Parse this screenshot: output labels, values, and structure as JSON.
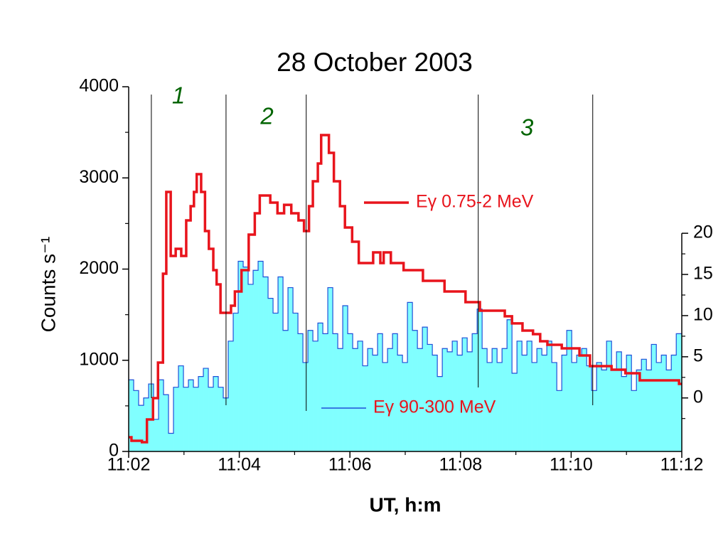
{
  "chart_data": {
    "type": "step",
    "title": "28 October 2003",
    "x_label": "UT, h:m",
    "y_label": "Counts s⁻¹",
    "xlim": [
      662,
      672
    ],
    "xticks": [
      {
        "value": 662,
        "label": "11:02"
      },
      {
        "value": 664,
        "label": "11:04"
      },
      {
        "value": 666,
        "label": "11:06"
      },
      {
        "value": 668,
        "label": "11:08"
      },
      {
        "value": 670,
        "label": "11:10"
      },
      {
        "value": 672,
        "label": "11:12"
      }
    ],
    "xminorticks": [
      663,
      665,
      667,
      669,
      671
    ],
    "ylim": [
      0,
      4000
    ],
    "yticks": [
      0,
      1000,
      2000,
      3000,
      4000
    ],
    "yminorticks": [
      500,
      1500,
      2500,
      3500
    ],
    "y2lim": [
      -6.5,
      37.8
    ],
    "y2ticks": [
      0,
      5,
      10,
      15,
      20
    ],
    "y2minorticks": [
      -2.5,
      2.5,
      7.5,
      12.5,
      17.5
    ],
    "series": [
      {
        "name": "Eγ 0.75-2 MeV",
        "color": "#e8141c",
        "x": [
          662.0,
          662.05,
          662.24,
          662.33,
          662.44,
          662.53,
          662.62,
          662.68,
          662.76,
          662.85,
          662.95,
          663.04,
          663.12,
          663.18,
          663.23,
          663.31,
          663.38,
          663.45,
          663.53,
          663.59,
          663.66,
          663.85,
          663.92,
          664.04,
          664.17,
          664.28,
          664.37,
          664.56,
          664.69,
          664.81,
          664.94,
          665.07,
          665.17,
          665.26,
          665.33,
          665.42,
          665.48,
          665.62,
          665.71,
          665.82,
          665.91,
          666.04,
          666.16,
          666.42,
          666.55,
          666.61,
          666.74,
          666.97,
          667.32,
          667.71,
          668.09,
          668.35,
          668.8,
          668.93,
          669.12,
          669.31,
          669.44,
          669.57,
          669.83,
          670.15,
          670.34,
          670.73,
          670.98,
          671.24,
          671.95
        ],
        "values": [
          156,
          117,
          101,
          351,
          585,
          975,
          1949,
          2846,
          2144,
          2222,
          2144,
          2534,
          2690,
          2846,
          3041,
          2846,
          2417,
          2222,
          1988,
          1832,
          1520,
          1598,
          1754,
          1988,
          2378,
          2612,
          2807,
          2729,
          2612,
          2705,
          2612,
          2534,
          2417,
          2690,
          2963,
          3158,
          3470,
          3275,
          2963,
          2690,
          2456,
          2300,
          2066,
          2183,
          2066,
          2183,
          2066,
          1988,
          1871,
          1754,
          1637,
          1544,
          1482,
          1404,
          1326,
          1287,
          1209,
          1170,
          1131,
          1053,
          936,
          897,
          858,
          780,
          741
        ]
      },
      {
        "name": "Eγ 90-300 MeV",
        "color": "#1f4fd8",
        "fill": "#80ffff",
        "axis": "y2",
        "x": [
          662,
          662.09,
          662.18,
          662.27,
          662.36,
          662.45,
          662.54,
          662.63,
          662.72,
          662.81,
          662.9,
          662.99,
          663.08,
          663.17,
          663.26,
          663.35,
          663.44,
          663.53,
          663.62,
          663.71,
          663.8,
          663.89,
          663.98,
          664.07,
          664.16,
          664.25,
          664.34,
          664.43,
          664.52,
          664.61,
          664.7,
          664.79,
          664.88,
          664.97,
          665.06,
          665.15,
          665.24,
          665.33,
          665.42,
          665.51,
          665.6,
          665.69,
          665.78,
          665.87,
          665.96,
          666.05,
          666.14,
          666.23,
          666.32,
          666.41,
          666.5,
          666.59,
          666.68,
          666.77,
          666.86,
          666.95,
          667.04,
          667.13,
          667.22,
          667.31,
          667.4,
          667.49,
          667.58,
          667.67,
          667.76,
          667.85,
          667.94,
          668.03,
          668.12,
          668.21,
          668.3,
          668.39,
          668.48,
          668.57,
          668.66,
          668.75,
          668.84,
          668.93,
          669.02,
          669.11,
          669.2,
          669.29,
          669.38,
          669.47,
          669.56,
          669.65,
          669.74,
          669.83,
          669.92,
          670.01,
          670.1,
          670.19,
          670.28,
          670.37,
          670.46,
          670.55,
          670.64,
          670.73,
          670.82,
          670.91,
          671.0,
          671.09,
          671.18,
          671.27,
          671.36,
          671.45,
          671.54,
          671.63,
          671.72,
          671.81,
          671.9
        ],
        "values": [
          2.2,
          0.9,
          -0.9,
          0,
          1.7,
          -2.6,
          2.2,
          0.4,
          -4.3,
          1.3,
          3.9,
          1.3,
          2.2,
          1.3,
          2.6,
          3.6,
          1.3,
          2.6,
          1.3,
          0,
          6.9,
          10.3,
          16.6,
          15.9,
          13.8,
          15.5,
          16.6,
          14.7,
          12.1,
          10.3,
          14.7,
          8.2,
          13.4,
          10.3,
          7.8,
          4.3,
          8.2,
          6.9,
          9.1,
          7.8,
          13.4,
          7.8,
          6.0,
          11.2,
          7.8,
          6.0,
          6.9,
          3.9,
          6.0,
          5.2,
          7.8,
          4.3,
          6.0,
          7.8,
          5.2,
          4.3,
          11.6,
          8.2,
          6.0,
          8.6,
          6.5,
          5.2,
          2.6,
          6.0,
          5.6,
          6.9,
          5.2,
          7.3,
          5.6,
          7.8,
          10.8,
          6.0,
          4.3,
          6.0,
          4.3,
          6.0,
          9.5,
          3.0,
          6.9,
          5.2,
          6.9,
          4.3,
          6.0,
          5.2,
          6.9,
          4.3,
          0.9,
          5.2,
          8.2,
          4.3,
          5.2,
          6.0,
          3.9,
          0.9,
          4.3,
          3.4,
          6.9,
          3.4,
          5.6,
          2.6,
          5.2,
          0.9,
          3.4,
          4.7,
          3.4,
          6.5,
          4.3,
          5.2,
          3.4,
          5.2,
          7.8
        ]
      }
    ],
    "markers": [
      662.41,
      663.76,
      665.21,
      668.32,
      670.39
    ],
    "annotations": [
      {
        "text": "1",
        "x": 662.9
      },
      {
        "text": "2",
        "x": 664.5
      },
      {
        "text": "3",
        "x": 669.2
      }
    ],
    "annotation_color": "#006400"
  }
}
